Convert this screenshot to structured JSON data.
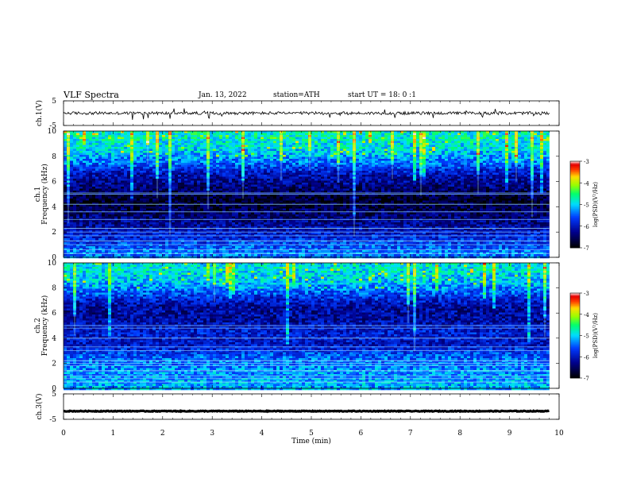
{
  "header": {
    "title": "VLF Spectra",
    "date": "Jan. 13, 2022",
    "station": "station=ATH",
    "start_ut": "start UT = 18: 0 :1"
  },
  "chart_data": {
    "type": "heatmap",
    "title": "VLF Spectra",
    "xlabel": "Time (min)",
    "xlim": [
      0,
      10
    ],
    "x_ticks": [
      "0",
      "1",
      "2",
      "3",
      "4",
      "5",
      "6",
      "7",
      "8",
      "9",
      "10"
    ],
    "panels": [
      {
        "id": "ch1-voltage",
        "type": "line",
        "ylabel": "ch.1(V)",
        "ylim": [
          -5,
          5
        ],
        "y_ticks": [
          "5",
          "-5"
        ],
        "x_end": 9.8,
        "baseline": 0,
        "amplitude": 1.2
      },
      {
        "id": "ch1-spectrogram",
        "type": "heatmap",
        "ylabel": "ch.1 Frequency (kHz)",
        "ylim": [
          0,
          10
        ],
        "y_ticks": [
          "0",
          "2",
          "4",
          "6",
          "8",
          "10"
        ],
        "x_end": 9.8,
        "colorbar": {
          "label": "log(PSD)(V²/Hz)",
          "range": [
            -7,
            -3
          ],
          "ticks": [
            "-3",
            "-4",
            "-5",
            "-6",
            "-7"
          ]
        },
        "levels": [
          {
            "freq_khz": 9.5,
            "log_psd": -4.8
          },
          {
            "freq_khz": 8.5,
            "log_psd": -5.0
          },
          {
            "freq_khz": 7.5,
            "log_psd": -5.4
          },
          {
            "freq_khz": 6.5,
            "log_psd": -6.1
          },
          {
            "freq_khz": 5.5,
            "log_psd": -6.4
          },
          {
            "freq_khz": 4.5,
            "log_psd": -6.8
          },
          {
            "freq_khz": 3.5,
            "log_psd": -6.5
          },
          {
            "freq_khz": 2.5,
            "log_psd": -6.2
          },
          {
            "freq_khz": 1.5,
            "log_psd": -5.8
          },
          {
            "freq_khz": 0.5,
            "log_psd": -5.4
          }
        ],
        "lines_khz": [
          0.3,
          0.6,
          1.0,
          1.3,
          1.7,
          2.0,
          2.3,
          3.0,
          3.6,
          4.2,
          5.0,
          5.1
        ]
      },
      {
        "id": "ch2-spectrogram",
        "type": "heatmap",
        "ylabel": "ch.2 Frequency (kHz)",
        "ylim": [
          0,
          10
        ],
        "y_ticks": [
          "0",
          "2",
          "4",
          "6",
          "8",
          "10"
        ],
        "x_end": 9.8,
        "colorbar": {
          "label": "log(PSD)(V²/Hz)",
          "range": [
            -7,
            -3
          ],
          "ticks": [
            "-3",
            "-4",
            "-5",
            "-6",
            "-7"
          ]
        },
        "levels": [
          {
            "freq_khz": 9.5,
            "log_psd": -4.9
          },
          {
            "freq_khz": 8.5,
            "log_psd": -5.1
          },
          {
            "freq_khz": 7.5,
            "log_psd": -5.6
          },
          {
            "freq_khz": 6.5,
            "log_psd": -6.2
          },
          {
            "freq_khz": 5.5,
            "log_psd": -6.2
          },
          {
            "freq_khz": 4.5,
            "log_psd": -5.9
          },
          {
            "freq_khz": 3.5,
            "log_psd": -6.0
          },
          {
            "freq_khz": 2.5,
            "log_psd": -5.5
          },
          {
            "freq_khz": 1.5,
            "log_psd": -5.3
          },
          {
            "freq_khz": 0.5,
            "log_psd": -5.2
          }
        ],
        "lines_khz": [
          0.5,
          0.8,
          1.0,
          1.4,
          1.8,
          2.0,
          2.2,
          3.0,
          3.3,
          4.0,
          4.8,
          5.0
        ]
      },
      {
        "id": "ch3-voltage",
        "type": "line",
        "ylabel": "ch.3(V)",
        "ylim": [
          -5,
          5
        ],
        "y_ticks": [
          "5",
          "-5"
        ],
        "x_end": 9.8,
        "baseline": -1.8,
        "amplitude": 0.3
      }
    ]
  }
}
